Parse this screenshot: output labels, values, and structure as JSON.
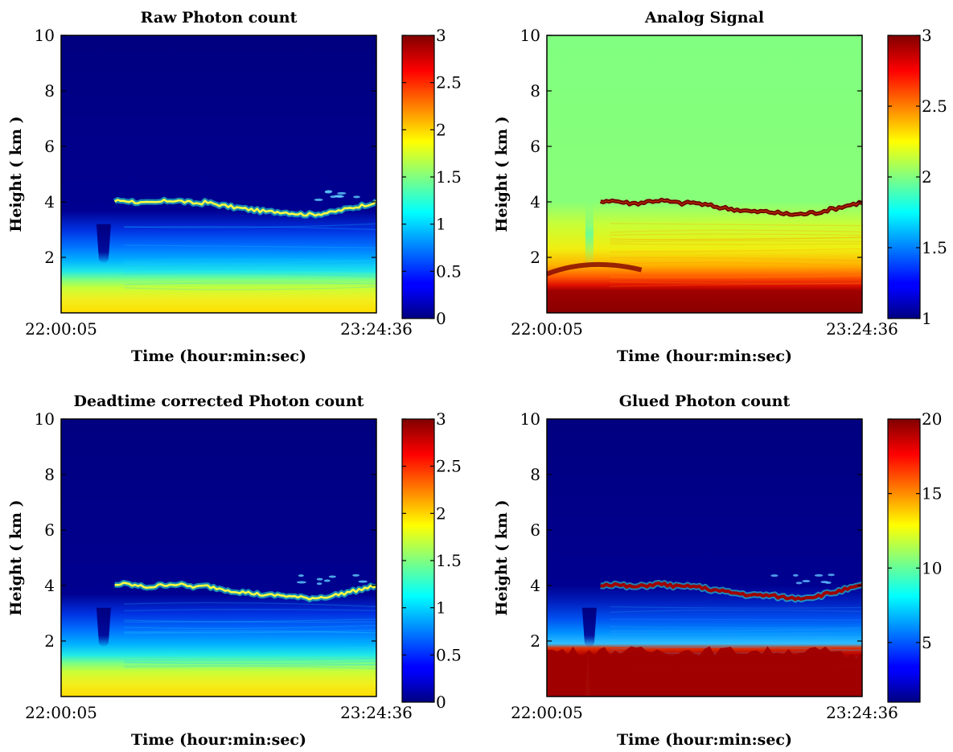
{
  "chart_data": [
    {
      "type": "heatmap",
      "title": "Raw Photon count",
      "xlabel": "Time (hour:min:sec)",
      "ylabel": "Height ( km )",
      "x_ticks": [
        "22:00:05",
        "23:24:36"
      ],
      "y_ticks": [
        2,
        4,
        6,
        8,
        10
      ],
      "ylim": [
        0,
        10
      ],
      "colorbar": {
        "ticks": [
          "0",
          "0.5",
          "1",
          "1.5",
          "2",
          "2.5",
          "3"
        ],
        "range": [
          0,
          3
        ]
      },
      "colormap": "jet",
      "style": "photon"
    },
    {
      "type": "heatmap",
      "title": "Analog Signal",
      "xlabel": "Time (hour:min:sec)",
      "ylabel": "Height ( km )",
      "x_ticks": [
        "22:00:05",
        "23:24:36"
      ],
      "y_ticks": [
        2,
        4,
        6,
        8,
        10
      ],
      "ylim": [
        0,
        10
      ],
      "colorbar": {
        "ticks": [
          "1",
          "1.5",
          "2",
          "2.5",
          "3"
        ],
        "range": [
          1,
          3
        ]
      },
      "colormap": "jet",
      "style": "analog"
    },
    {
      "type": "heatmap",
      "title": "Deadtime corrected Photon count",
      "xlabel": "Time (hour:min:sec)",
      "ylabel": "Height ( km )",
      "x_ticks": [
        "22:00:05",
        "23:24:36"
      ],
      "y_ticks": [
        2,
        4,
        6,
        8,
        10
      ],
      "ylim": [
        0,
        10
      ],
      "colorbar": {
        "ticks": [
          "0",
          "0.5",
          "1",
          "1.5",
          "2",
          "2.5",
          "3"
        ],
        "range": [
          0,
          3
        ]
      },
      "colormap": "jet",
      "style": "photon"
    },
    {
      "type": "heatmap",
      "title": "Glued Photon count",
      "xlabel": "Time (hour:min:sec)",
      "ylabel": "Height ( km )",
      "x_ticks": [
        "22:00:05",
        "23:24:36"
      ],
      "y_ticks": [
        2,
        4,
        6,
        8,
        10
      ],
      "ylim": [
        0,
        10
      ],
      "colorbar": {
        "ticks": [
          "5",
          "10",
          "15",
          "20"
        ],
        "range": [
          1,
          20
        ]
      },
      "colormap": "jet",
      "style": "glued"
    }
  ],
  "colors": {
    "jet_dark_blue": "#000080",
    "jet_dark_red": "#800000",
    "analog_background": "#80ff80"
  }
}
